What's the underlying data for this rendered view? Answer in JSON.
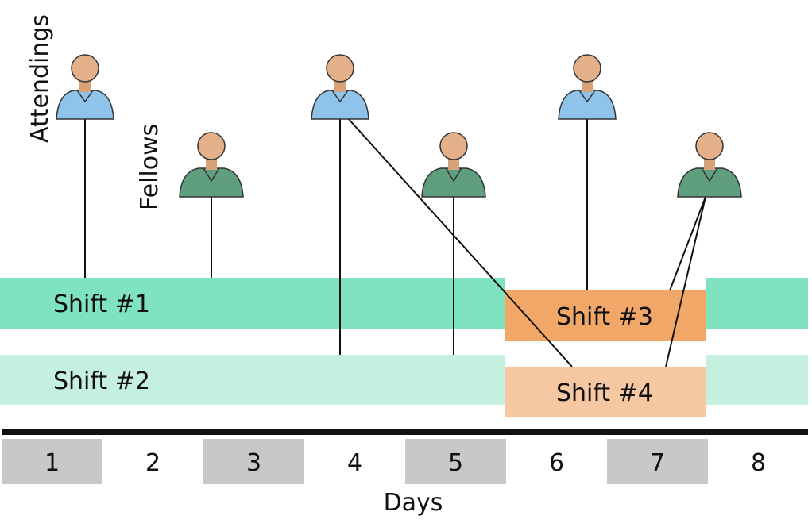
{
  "labels": {
    "attendings": "Attendings",
    "fellows": "Fellows"
  },
  "shifts": [
    "Shift #1",
    "Shift #2",
    "Shift #3",
    "Shift #4"
  ],
  "days": [
    "1",
    "2",
    "3",
    "4",
    "5",
    "6",
    "7",
    "8"
  ],
  "axis_label": "Days"
}
